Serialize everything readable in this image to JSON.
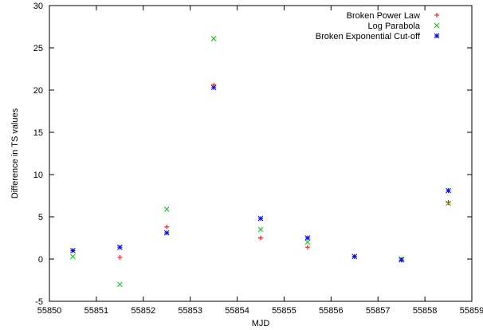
{
  "chart_data": {
    "type": "scatter",
    "title": "",
    "xlabel": "MJD",
    "ylabel": "Difference in TS values",
    "xlim": [
      55850,
      55859
    ],
    "ylim": [
      -5,
      30
    ],
    "xticks": [
      55850,
      55851,
      55852,
      55853,
      55854,
      55855,
      55856,
      55857,
      55858,
      55859
    ],
    "yticks": [
      -5,
      0,
      5,
      10,
      15,
      20,
      25,
      30
    ],
    "grid": false,
    "legend_position": "top-right",
    "series": [
      {
        "name": "Broken Power Law",
        "marker": "plus",
        "color": "#ff0000",
        "points": [
          [
            55850.5,
            1.0
          ],
          [
            55851.5,
            0.2
          ],
          [
            55852.5,
            3.8
          ],
          [
            55853.5,
            20.6
          ],
          [
            55854.5,
            2.5
          ],
          [
            55855.5,
            1.4
          ],
          [
            55856.5,
            0.3
          ],
          [
            55857.5,
            -0.1
          ],
          [
            55858.5,
            6.7
          ]
        ]
      },
      {
        "name": "Log Parabola",
        "marker": "cross",
        "color": "#00c000",
        "points": [
          [
            55850.5,
            0.3
          ],
          [
            55851.5,
            -3.0
          ],
          [
            55852.5,
            5.9
          ],
          [
            55853.5,
            26.1
          ],
          [
            55854.5,
            3.5
          ],
          [
            55855.5,
            2.0
          ],
          [
            55856.5,
            0.3
          ],
          [
            55857.5,
            0.0
          ],
          [
            55858.5,
            6.6
          ]
        ]
      },
      {
        "name": "Broken Exponential Cut-off",
        "marker": "star",
        "color": "#0000ff",
        "points": [
          [
            55850.5,
            1.0
          ],
          [
            55851.5,
            1.4
          ],
          [
            55852.5,
            3.1
          ],
          [
            55853.5,
            20.3
          ],
          [
            55854.5,
            4.8
          ],
          [
            55855.5,
            2.5
          ],
          [
            55856.5,
            0.3
          ],
          [
            55857.5,
            -0.1
          ],
          [
            55858.5,
            8.1
          ]
        ]
      }
    ]
  }
}
